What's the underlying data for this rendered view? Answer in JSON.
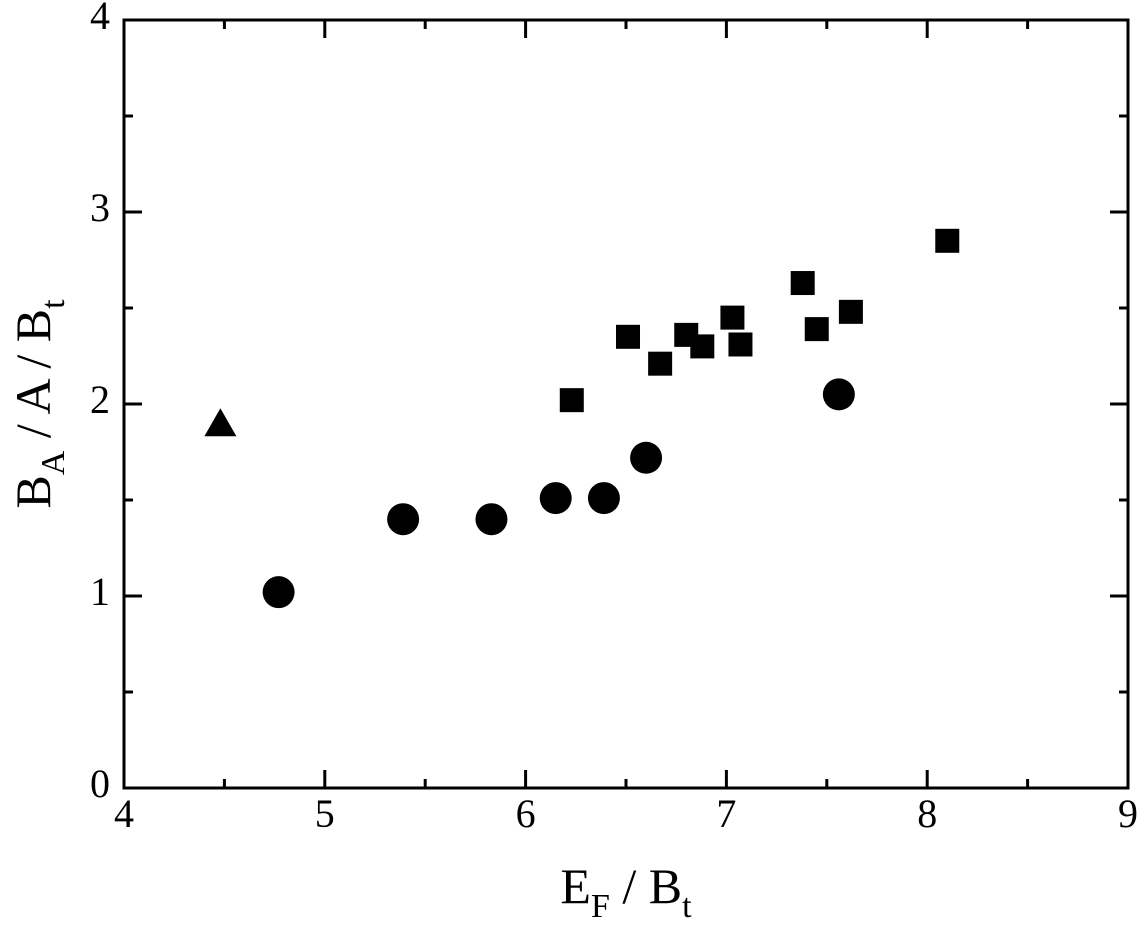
{
  "chart_data": {
    "type": "scatter",
    "xlabel": [
      "E",
      "F",
      " / B",
      "t"
    ],
    "ylabel": [
      "B",
      "A",
      " / A / B",
      "t"
    ],
    "xlim": [
      4,
      9
    ],
    "ylim": [
      0,
      4
    ],
    "xticks": [
      4,
      5,
      6,
      7,
      8,
      9
    ],
    "yticks": [
      0,
      1,
      2,
      3,
      4
    ],
    "xticks_minor": [
      4.5,
      5.5,
      6.5,
      7.5,
      8.5
    ],
    "yticks_minor": [
      0.5,
      1.5,
      2.5,
      3.5
    ],
    "series": [
      {
        "marker": "circle",
        "color": "#000000",
        "x": [
          4.77,
          5.39,
          5.83,
          6.15,
          6.39,
          6.6,
          7.56
        ],
        "values": [
          1.02,
          1.4,
          1.4,
          1.51,
          1.51,
          1.72,
          2.05
        ]
      },
      {
        "marker": "square",
        "color": "#000000",
        "x": [
          6.23,
          6.51,
          6.67,
          6.8,
          6.88,
          7.03,
          7.07,
          7.38,
          7.45,
          7.62,
          8.1
        ],
        "values": [
          2.02,
          2.35,
          2.21,
          2.36,
          2.3,
          2.45,
          2.31,
          2.63,
          2.39,
          2.48,
          2.85
        ]
      },
      {
        "marker": "triangle",
        "color": "#000000",
        "x": [
          4.48
        ],
        "values": [
          1.9
        ]
      }
    ]
  }
}
